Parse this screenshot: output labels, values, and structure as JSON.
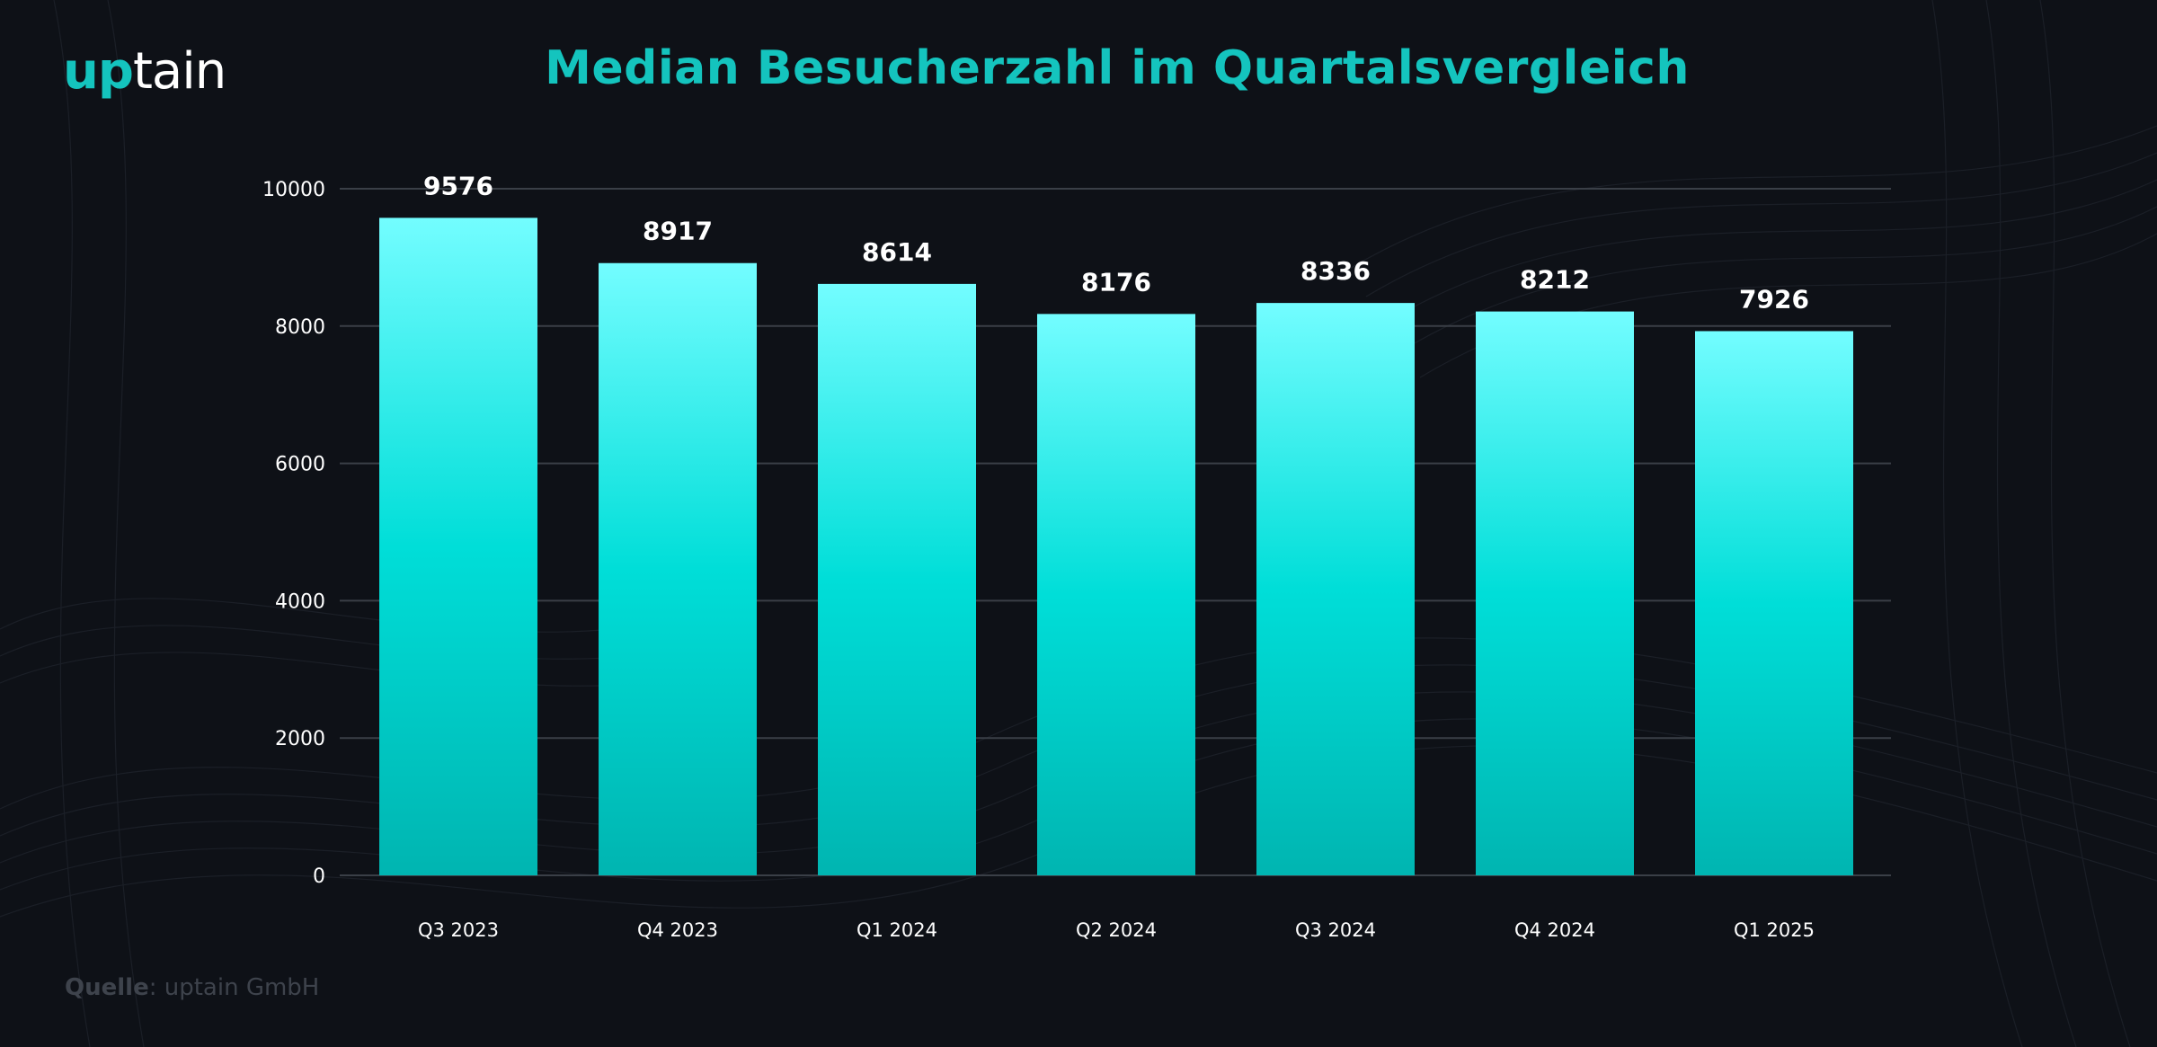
{
  "logo": {
    "accent": "up",
    "rest": "tain"
  },
  "source": {
    "label": "Quelle",
    "value": ": uptain GmbH"
  },
  "colors": {
    "background": "#0e1117",
    "accent": "#14c4be",
    "bar_top": "#73fdff",
    "bar_mid": "#00ded8",
    "bar_bottom": "#00b5b1",
    "grid": "#3a3f47",
    "text": "#ffffff"
  },
  "chart_data": {
    "type": "bar",
    "title": "Median Besucherzahl im Quartalsvergleich",
    "categories": [
      "Q3 2023",
      "Q4 2023",
      "Q1 2024",
      "Q2 2024",
      "Q3 2024",
      "Q4 2024",
      "Q1 2025"
    ],
    "values": [
      9576,
      8917,
      8614,
      8176,
      8336,
      8212,
      7926
    ],
    "yticks": [
      0,
      2000,
      4000,
      6000,
      8000,
      10000
    ],
    "ylim": [
      0,
      10000
    ],
    "xlabel": "",
    "ylabel": "",
    "grid": true,
    "legend": "none"
  }
}
